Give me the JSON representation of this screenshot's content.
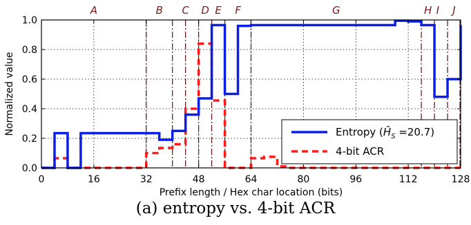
{
  "caption": "(a) entropy vs. 4-bit ACR",
  "chart_data": {
    "type": "line",
    "xlabel": "Prefix length / Hex char location (bits)",
    "ylabel": "Normalized value",
    "xlim": [
      0,
      128
    ],
    "ylim": [
      0,
      1.0
    ],
    "xticks": [
      0,
      16,
      32,
      48,
      64,
      80,
      96,
      112,
      128
    ],
    "yticks": [
      0.0,
      0.2,
      0.4,
      0.6,
      0.8,
      1.0
    ],
    "ytick_labels": [
      "0.0",
      "0.2",
      "0.4",
      "0.6",
      "0.8",
      "1.0"
    ],
    "grid": true,
    "legend_position": "lower-right",
    "region_boundaries": [
      32,
      40,
      44,
      48,
      52,
      56,
      64,
      116,
      120,
      124,
      128
    ],
    "regions": [
      {
        "label": "A",
        "x": 16
      },
      {
        "label": "B",
        "x": 36
      },
      {
        "label": "C",
        "x": 44
      },
      {
        "label": "D",
        "x": 50
      },
      {
        "label": "E",
        "x": 54
      },
      {
        "label": "F",
        "x": 60
      },
      {
        "label": "G",
        "x": 90
      },
      {
        "label": "H",
        "x": 118
      },
      {
        "label": "I",
        "x": 121
      },
      {
        "label": "J",
        "x": 126
      }
    ],
    "series": [
      {
        "name": "Entropy",
        "legend_prefix": "Entropy (",
        "legend_math": "Ĥ",
        "legend_sub": "S",
        "legend_suffix": " =20.7)",
        "color": "#0a1fe6",
        "style": "solid",
        "x": [
          0,
          4,
          8,
          12,
          32,
          36,
          40,
          44,
          48,
          52,
          56,
          60,
          64,
          104,
          108,
          112,
          116,
          120,
          124,
          128
        ],
        "values": [
          0.0,
          0.235,
          0.0,
          0.235,
          0.235,
          0.19,
          0.25,
          0.36,
          0.47,
          0.965,
          0.5,
          0.96,
          0.965,
          0.965,
          0.995,
          0.99,
          0.965,
          0.48,
          0.6,
          0.965
        ]
      },
      {
        "name": "4-bit ACR",
        "color": "#ff1a1a",
        "style": "dashed",
        "x": [
          0,
          4,
          8,
          12,
          32,
          36,
          40,
          44,
          48,
          52,
          56,
          60,
          64,
          68,
          72,
          76,
          120,
          124,
          128
        ],
        "values": [
          0.0,
          0.065,
          0.0,
          0.0,
          0.1,
          0.135,
          0.16,
          0.4,
          0.84,
          0.455,
          0.0,
          0.0,
          0.065,
          0.075,
          0.01,
          0.0,
          0.0,
          0.0,
          0.0
        ]
      }
    ]
  }
}
